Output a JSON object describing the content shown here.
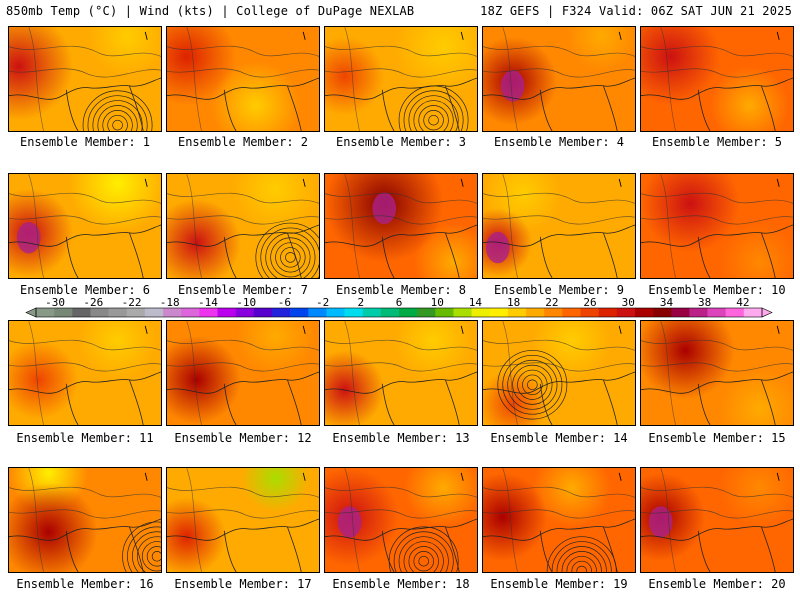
{
  "header": {
    "left": "850mb Temp (°C) | Wind (kts) | College of DuPage NEXLAB",
    "right": "18Z GEFS | F324 Valid: 06Z SAT JUN 21 2025"
  },
  "colorbar": {
    "labels": [
      "-30",
      "-26",
      "-22",
      "-18",
      "-14",
      "-10",
      "-6",
      "-2",
      "2",
      "6",
      "10",
      "14",
      "18",
      "22",
      "26",
      "30",
      "34",
      "38",
      "42"
    ],
    "colors": [
      "#889988",
      "#778877",
      "#666666",
      "#888888",
      "#999999",
      "#aaaaaa",
      "#bbbbcc",
      "#cc88cc",
      "#dd66dd",
      "#ee33ee",
      "#bb00ee",
      "#8800dd",
      "#5500cc",
      "#2222dd",
      "#0044ee",
      "#0088ff",
      "#00bbff",
      "#00ddee",
      "#00ccaa",
      "#00bb77",
      "#00aa44",
      "#339922",
      "#66bb00",
      "#aadd00",
      "#eeee00",
      "#ffee00",
      "#ffcc00",
      "#ffaa00",
      "#ff8800",
      "#ff6600",
      "#ee4400",
      "#dd2200",
      "#cc1111",
      "#aa0000",
      "#880000",
      "#990044",
      "#bb2288",
      "#dd44bb",
      "#ff66dd",
      "#ffaaee"
    ]
  },
  "members": [
    {
      "label": "Ensemble Member: 1"
    },
    {
      "label": "Ensemble Member: 2"
    },
    {
      "label": "Ensemble Member: 3"
    },
    {
      "label": "Ensemble Member: 4"
    },
    {
      "label": "Ensemble Member: 5"
    },
    {
      "label": "Ensemble Member: 6"
    },
    {
      "label": "Ensemble Member: 7"
    },
    {
      "label": "Ensemble Member: 8"
    },
    {
      "label": "Ensemble Member: 9"
    },
    {
      "label": "Ensemble Member: 10"
    },
    {
      "label": "Ensemble Member: 11"
    },
    {
      "label": "Ensemble Member: 12"
    },
    {
      "label": "Ensemble Member: 13"
    },
    {
      "label": "Ensemble Member: 14"
    },
    {
      "label": "Ensemble Member: 15"
    },
    {
      "label": "Ensemble Member: 16"
    },
    {
      "label": "Ensemble Member: 17"
    },
    {
      "label": "Ensemble Member: 18"
    },
    {
      "label": "Ensemble Member: 19"
    },
    {
      "label": "Ensemble Member: 20"
    }
  ]
}
